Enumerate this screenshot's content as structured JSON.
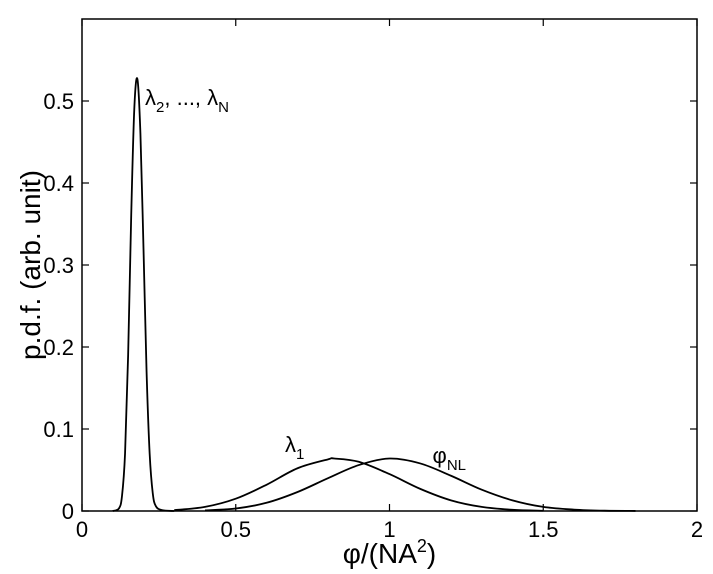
{
  "chart_data": {
    "type": "line",
    "title": "",
    "xlabel": {
      "base": "φ/(NA",
      "sup": "2",
      "close": ")"
    },
    "ylabel": "p.d.f. (arb. unit)",
    "xlim": [
      0,
      2
    ],
    "ylim": [
      0,
      0.6
    ],
    "x_ticks": [
      0,
      0.5,
      1,
      1.5,
      2
    ],
    "x_tick_labels": [
      "0",
      "0.5",
      "1",
      "1.5",
      "2"
    ],
    "y_ticks": [
      0,
      0.1,
      0.2,
      0.3,
      0.4,
      0.5
    ],
    "y_tick_labels": [
      "0",
      "0.1",
      "0.2",
      "0.3",
      "0.4",
      "0.5"
    ],
    "grid": false,
    "legend": "none",
    "series": [
      {
        "annotation": {
          "parts": [
            "λ",
            "2",
            ", ..., λ",
            "N"
          ]
        },
        "x": [
          0.1,
          0.12,
          0.13,
          0.14,
          0.15,
          0.16,
          0.17,
          0.18,
          0.19,
          0.2,
          0.21,
          0.22,
          0.23,
          0.24,
          0.26,
          0.3
        ],
        "values": [
          0.0,
          0.003,
          0.018,
          0.07,
          0.19,
          0.36,
          0.49,
          0.527,
          0.46,
          0.32,
          0.17,
          0.07,
          0.022,
          0.006,
          0.001,
          0.0
        ]
      },
      {
        "annotation": {
          "parts": [
            "λ",
            "1"
          ]
        },
        "x": [
          0.3,
          0.4,
          0.5,
          0.6,
          0.7,
          0.8,
          0.82,
          0.9,
          1.0,
          1.1,
          1.2,
          1.3,
          1.4,
          1.5
        ],
        "values": [
          0.001,
          0.005,
          0.015,
          0.032,
          0.052,
          0.063,
          0.064,
          0.06,
          0.045,
          0.027,
          0.013,
          0.005,
          0.0015,
          0.0003
        ]
      },
      {
        "annotation": {
          "parts": [
            "φ",
            "NL"
          ]
        },
        "x": [
          0.4,
          0.5,
          0.6,
          0.7,
          0.8,
          0.9,
          1.0,
          1.1,
          1.2,
          1.3,
          1.4,
          1.5,
          1.6,
          1.7,
          1.8
        ],
        "values": [
          0.0008,
          0.003,
          0.01,
          0.023,
          0.04,
          0.056,
          0.064,
          0.058,
          0.043,
          0.026,
          0.013,
          0.005,
          0.0017,
          0.0004,
          0.0001
        ]
      }
    ]
  }
}
